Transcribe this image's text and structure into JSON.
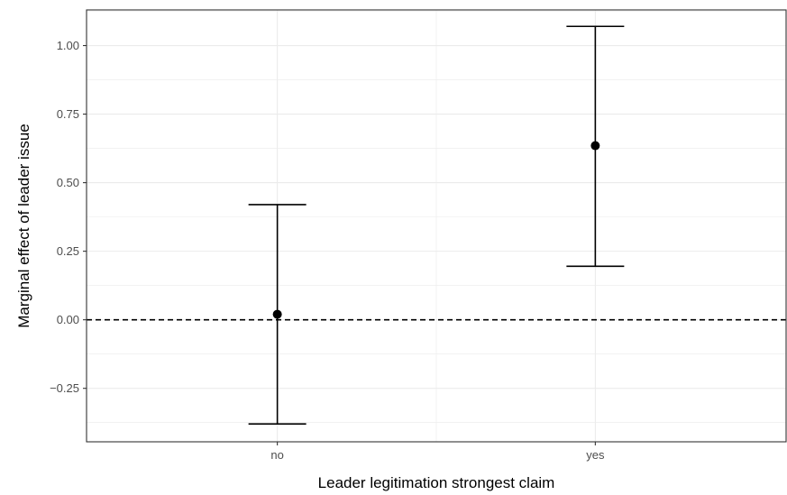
{
  "chart_data": {
    "type": "scatter",
    "subtype": "point-with-error-bars",
    "title": "",
    "xlabel": "Leader legitimation strongest claim",
    "ylabel": "Marginal effect of leader issue",
    "categories": [
      "no",
      "yes"
    ],
    "series": [
      {
        "estimates": [
          0.02,
          0.635
        ],
        "ci_lower": [
          -0.38,
          0.195
        ],
        "ci_upper": [
          0.42,
          1.07
        ]
      }
    ],
    "reference_line": {
      "y": 0,
      "style": "dashed"
    },
    "ylim": [
      -0.445,
      1.13
    ],
    "yticks": [
      -0.25,
      0.0,
      0.25,
      0.5,
      0.75,
      1.0
    ],
    "ytick_labels": [
      "−0.25",
      "0.00",
      "0.25",
      "0.50",
      "0.75",
      "1.00"
    ],
    "grid": true,
    "theme": "bw",
    "colors": {
      "point": "#000000",
      "grid": "#ebebeb",
      "panel_border": "#333333",
      "tick_text": "#4d4d4d"
    }
  }
}
